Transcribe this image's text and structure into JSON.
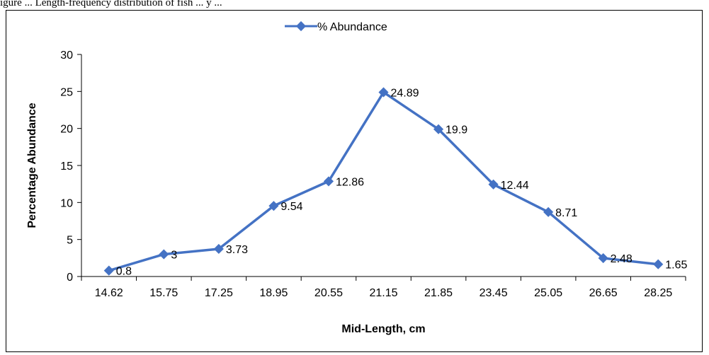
{
  "caption_fragment": "igure ... Length-frequency distribution of fish ... y ... ",
  "chart_data": {
    "type": "line",
    "title": "",
    "xlabel": "Mid-Length, cm",
    "ylabel": "Percentage Abundance",
    "categories": [
      "14.62",
      "15.75",
      "17.25",
      "18.95",
      "20.55",
      "21.15",
      "21.85",
      "23.45",
      "25.05",
      "26.65",
      "28.25"
    ],
    "series": [
      {
        "name": "% Abundance",
        "values": [
          0.8,
          3,
          3.73,
          9.54,
          12.86,
          24.89,
          19.9,
          12.44,
          8.71,
          2.48,
          1.65
        ],
        "labels": [
          "0.8",
          "3",
          "3.73",
          "9.54",
          "12.86",
          "24.89",
          "19.9",
          "12.44",
          "8.71",
          "2.48",
          "1.65"
        ]
      }
    ],
    "ylim": [
      0,
      30
    ],
    "yticks": [
      "0",
      "5",
      "10",
      "15",
      "20",
      "25",
      "30"
    ],
    "grid": false,
    "legend": "top-center",
    "colors": {
      "series": "#4472C4"
    },
    "marker": "diamond"
  }
}
